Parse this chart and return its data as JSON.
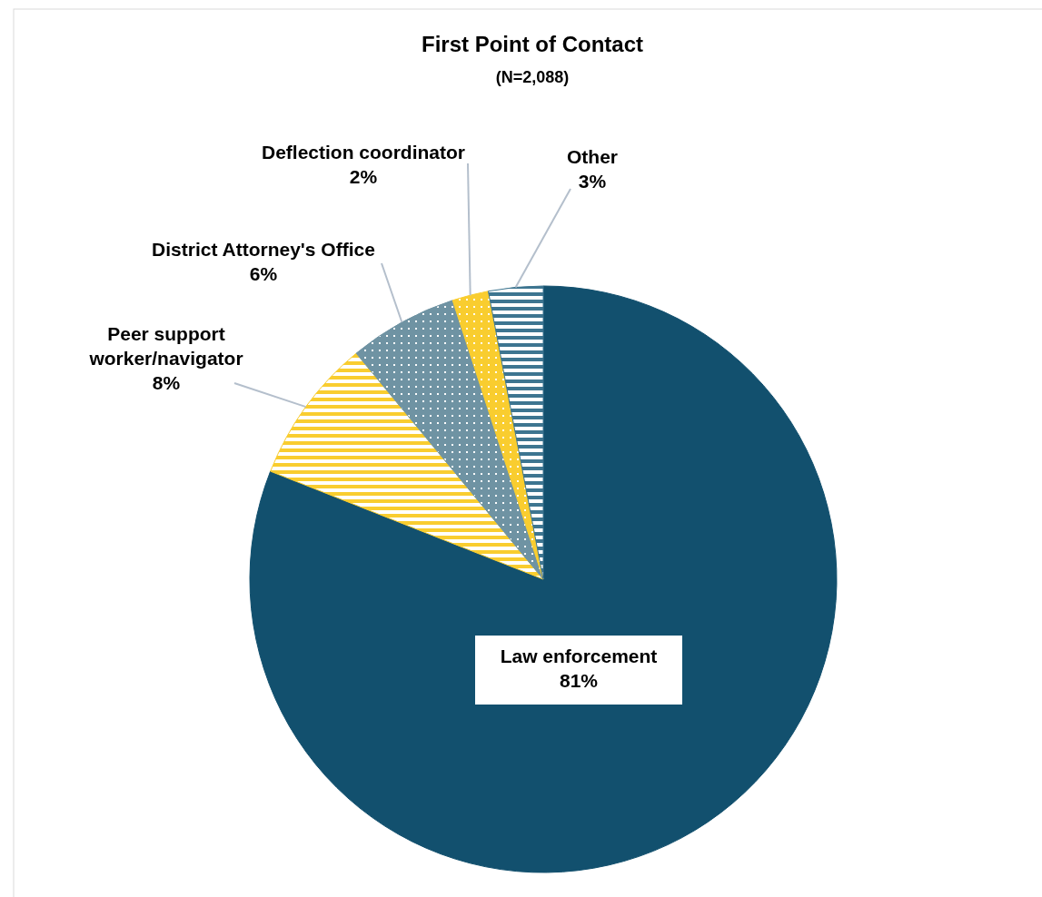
{
  "chart_data": {
    "type": "pie",
    "title": "First Point of Contact",
    "subtitle": "(N=2,088)",
    "categories": [
      "Law enforcement",
      "Peer support worker/navigator",
      "District Attorney's Office",
      "Deflection coordinator",
      "Other"
    ],
    "values": [
      81,
      8,
      6,
      2,
      3
    ],
    "colors": [
      "#12506e",
      "#f9cd2f",
      "#6f93a3",
      "#f9cd2f",
      "#3d7590"
    ],
    "value_labels": [
      "81%",
      "8%",
      "6%",
      "2%",
      "3%"
    ],
    "legend": false
  }
}
